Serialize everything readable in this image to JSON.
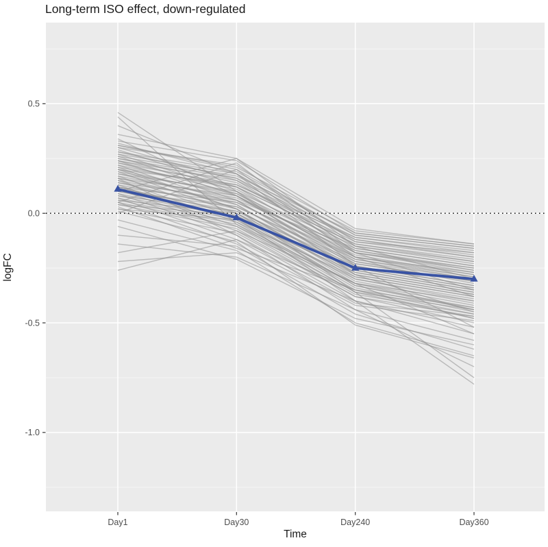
{
  "title": "Long-term ISO effect, down-regulated",
  "colors": {
    "panel_bg": "#EBEBEB",
    "grid_major": "#FFFFFF",
    "grid_minor": "#F5F5F5",
    "gene_line": "#8F8F8F",
    "mean_line": "#3953A4",
    "zero_line": "#222222",
    "tick_mark": "#333333",
    "axis_text": "#4D4D4D",
    "title_text": "#1A1A1A"
  },
  "chart_data": {
    "type": "line",
    "title": "Long-term ISO effect, down-regulated",
    "xlabel": "Time",
    "ylabel": "logFC",
    "categories": [
      "Day1",
      "Day30",
      "Day240",
      "Day360"
    ],
    "y_ticks": [
      {
        "label": "0.5",
        "value": 0.5
      },
      {
        "label": "0.0",
        "value": 0.0
      },
      {
        "label": "-0.5",
        "value": -0.5
      },
      {
        "label": "-1.0",
        "value": -1.0
      }
    ],
    "y_minor_ticks": [
      0.75,
      0.25,
      -0.25,
      -0.75,
      -1.25
    ],
    "ylim": [
      -1.36,
      0.87
    ],
    "grid": true,
    "legend_position": "none",
    "reference_line_y": 0.0,
    "series": [
      {
        "name": "mean logFC",
        "style": "line+markers",
        "marker": "triangle-up",
        "values": [
          0.11,
          -0.02,
          -0.25,
          -0.3
        ]
      }
    ],
    "gene_lines": [
      [
        0.32,
        0.18,
        -0.15,
        -0.22
      ],
      [
        0.31,
        0.2,
        -0.1,
        -0.16
      ],
      [
        0.3,
        0.15,
        -0.18,
        -0.25
      ],
      [
        0.3,
        0.22,
        -0.13,
        -0.2
      ],
      [
        0.29,
        0.12,
        -0.2,
        -0.28
      ],
      [
        0.28,
        0.16,
        -0.16,
        -0.24
      ],
      [
        0.27,
        0.1,
        -0.22,
        -0.3
      ],
      [
        0.27,
        0.18,
        -0.12,
        -0.19
      ],
      [
        0.26,
        0.08,
        -0.24,
        -0.33
      ],
      [
        0.25,
        0.14,
        -0.17,
        -0.26
      ],
      [
        0.24,
        0.06,
        -0.26,
        -0.35
      ],
      [
        0.24,
        0.12,
        -0.14,
        -0.21
      ],
      [
        0.23,
        0.09,
        -0.21,
        -0.29
      ],
      [
        0.22,
        0.04,
        -0.28,
        -0.37
      ],
      [
        0.22,
        0.11,
        -0.18,
        -0.27
      ],
      [
        0.21,
        0.02,
        -0.3,
        -0.4
      ],
      [
        0.2,
        0.08,
        -0.23,
        -0.31
      ],
      [
        0.2,
        0.13,
        -0.11,
        -0.17
      ],
      [
        0.19,
        0.0,
        -0.32,
        -0.42
      ],
      [
        0.18,
        0.06,
        -0.25,
        -0.34
      ],
      [
        0.18,
        0.1,
        -0.15,
        -0.23
      ],
      [
        0.17,
        -0.02,
        -0.33,
        -0.44
      ],
      [
        0.16,
        0.04,
        -0.27,
        -0.36
      ],
      [
        0.16,
        0.08,
        -0.19,
        -0.28
      ],
      [
        0.15,
        -0.04,
        -0.35,
        -0.46
      ],
      [
        0.14,
        0.02,
        -0.29,
        -0.38
      ],
      [
        0.14,
        0.06,
        -0.16,
        -0.24
      ],
      [
        0.13,
        -0.06,
        -0.36,
        -0.48
      ],
      [
        0.12,
        0.0,
        -0.31,
        -0.41
      ],
      [
        0.12,
        0.05,
        -0.2,
        -0.29
      ],
      [
        0.11,
        -0.08,
        -0.38,
        -0.5
      ],
      [
        0.1,
        -0.01,
        -0.33,
        -0.43
      ],
      [
        0.1,
        0.03,
        -0.22,
        -0.32
      ],
      [
        0.09,
        -0.1,
        -0.4,
        -0.52
      ],
      [
        0.08,
        -0.03,
        -0.34,
        -0.45
      ],
      [
        0.08,
        0.01,
        -0.24,
        -0.33
      ],
      [
        0.07,
        -0.12,
        -0.41,
        -0.47
      ],
      [
        0.06,
        -0.05,
        -0.36,
        -0.44
      ],
      [
        0.06,
        0.0,
        -0.26,
        -0.35
      ],
      [
        0.05,
        -0.14,
        -0.42,
        -0.49
      ],
      [
        0.04,
        -0.07,
        -0.37,
        -0.46
      ],
      [
        0.04,
        -0.01,
        -0.28,
        -0.37
      ],
      [
        0.03,
        -0.16,
        -0.35,
        -0.43
      ],
      [
        0.02,
        -0.09,
        -0.38,
        -0.47
      ],
      [
        0.02,
        -0.03,
        -0.3,
        -0.39
      ],
      [
        0.26,
        0.17,
        -0.09,
        -0.15
      ],
      [
        0.23,
        0.13,
        -0.13,
        -0.18
      ],
      [
        0.19,
        0.09,
        -0.17,
        -0.25
      ],
      [
        0.15,
        0.05,
        -0.21,
        -0.3
      ],
      [
        0.11,
        0.01,
        -0.25,
        -0.34
      ],
      [
        0.07,
        -0.04,
        -0.29,
        -0.38
      ],
      [
        0.31,
        0.21,
        -0.08,
        -0.14
      ],
      [
        0.25,
        0.16,
        -0.11,
        -0.18
      ],
      [
        0.21,
        0.12,
        -0.14,
        -0.22
      ],
      [
        0.17,
        0.07,
        -0.18,
        -0.26
      ],
      [
        0.13,
        0.03,
        -0.23,
        -0.31
      ],
      [
        0.09,
        -0.02,
        -0.27,
        -0.36
      ],
      [
        0.05,
        -0.06,
        -0.32,
        -0.4
      ],
      [
        0.28,
        0.19,
        -0.1,
        -0.16
      ],
      [
        0.24,
        0.15,
        -0.12,
        -0.2
      ],
      [
        0.46,
        0.1,
        -0.28,
        -0.45
      ],
      [
        0.44,
        -0.05,
        -0.32,
        -0.55
      ],
      [
        0.36,
        0.25,
        -0.07,
        -0.14
      ],
      [
        0.33,
        0.24,
        -0.09,
        -0.15
      ],
      [
        0.1,
        0.25,
        -0.15,
        -0.3
      ],
      [
        0.05,
        0.23,
        -0.18,
        -0.35
      ],
      [
        0.0,
        0.2,
        -0.2,
        -0.38
      ],
      [
        -0.26,
        -0.12,
        -0.35,
        -0.48
      ],
      [
        -0.22,
        -0.18,
        -0.4,
        -0.55
      ],
      [
        -0.18,
        -0.08,
        -0.32,
        -0.44
      ],
      [
        -0.14,
        -0.2,
        -0.44,
        -0.58
      ],
      [
        -0.1,
        -0.15,
        -0.46,
        -0.62
      ],
      [
        -0.06,
        -0.21,
        -0.48,
        -0.6
      ],
      [
        -0.03,
        -0.17,
        -0.5,
        -0.65
      ],
      [
        0.2,
        0.02,
        -0.36,
        -0.75
      ],
      [
        0.12,
        -0.02,
        -0.4,
        -0.78
      ],
      [
        0.16,
        -0.1,
        -0.44,
        -0.7
      ],
      [
        0.01,
        -0.13,
        -0.51,
        -0.66
      ],
      [
        0.34,
        0.08,
        -0.2,
        -0.27
      ],
      [
        0.4,
        0.18,
        -0.24,
        -0.52
      ]
    ]
  }
}
